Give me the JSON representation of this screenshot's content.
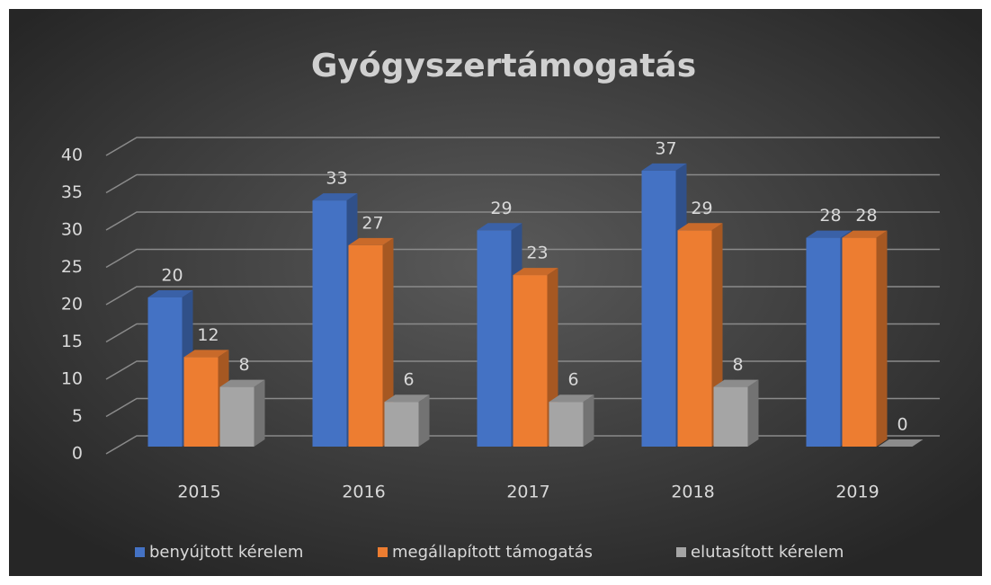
{
  "chart_data": {
    "type": "bar3d",
    "title": "Gyógyszertámogatás",
    "categories": [
      "2015",
      "2016",
      "2017",
      "2018",
      "2019"
    ],
    "series": [
      {
        "name": "benyújtott kérelem",
        "color": "#4472c4",
        "values": [
          20,
          33,
          29,
          37,
          28
        ]
      },
      {
        "name": "megállapított támogatás",
        "color": "#ed7d31",
        "values": [
          12,
          27,
          23,
          29,
          28
        ]
      },
      {
        "name": "elutasított kérelem",
        "color": "#a5a5a5",
        "values": [
          8,
          6,
          6,
          8,
          0
        ]
      }
    ],
    "ylim": [
      0,
      40
    ],
    "yticks": [
      0,
      5,
      10,
      15,
      20,
      25,
      30,
      35,
      40
    ],
    "grid": true,
    "legend": "bottom"
  }
}
